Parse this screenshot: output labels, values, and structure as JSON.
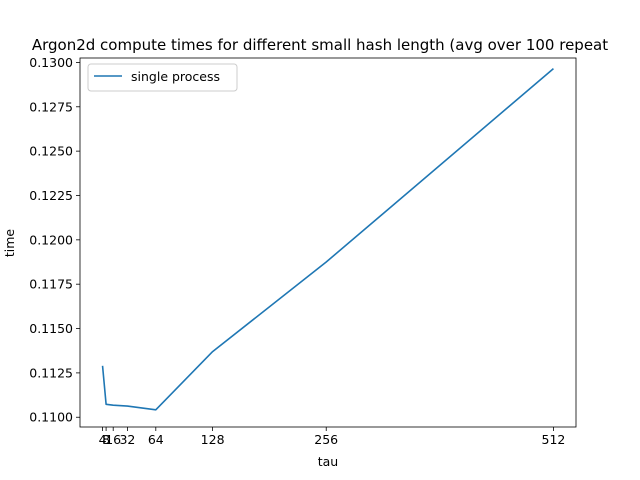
{
  "chart_data": {
    "type": "line",
    "title": "Argon2d compute times for different small hash length (avg over 100 repeat",
    "xlabel": "tau",
    "ylabel": "time",
    "x": [
      4,
      8,
      16,
      32,
      64,
      128,
      256,
      512
    ],
    "xticks": [
      "4",
      "8",
      "16",
      "32",
      "64",
      "128",
      "256",
      "512"
    ],
    "xlim": [
      -21.4,
      537.4
    ],
    "ylim": [
      0.10945,
      0.13025
    ],
    "yticks": [
      "0.1100",
      "0.1125",
      "0.1150",
      "0.1175",
      "0.1200",
      "0.1225",
      "0.1250",
      "0.1275",
      "0.1300"
    ],
    "series": [
      {
        "name": "single process",
        "color": "#1f77b4",
        "values": [
          0.1129,
          0.11073,
          0.11068,
          0.11063,
          0.11042,
          0.1137,
          0.11875,
          0.12965
        ]
      }
    ],
    "grid": false,
    "legend": "top-left"
  }
}
